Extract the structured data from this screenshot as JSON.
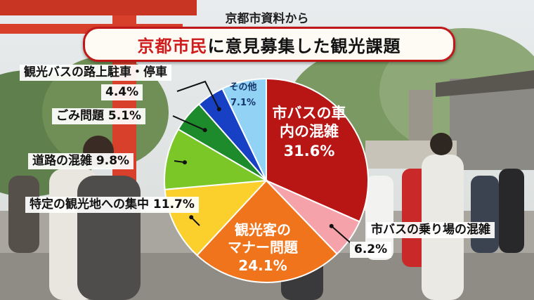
{
  "source": "京都市資料から",
  "title_accent": "京都市民",
  "title_rest": "に意見募集した観光課題",
  "chart_data": {
    "type": "pie",
    "title": "京都市民に意見募集した観光課題",
    "start_angle_deg": 0,
    "direction": "clockwise",
    "slices": [
      {
        "label": "市バスの車内の混雑",
        "value": 31.6,
        "value_text": "31.6%",
        "color": "#b81515"
      },
      {
        "label": "市バスの乗り場の混雑",
        "value": 6.2,
        "value_text": "6.2%",
        "color": "#f5a2aa"
      },
      {
        "label": "観光客のマナー問題",
        "value": 24.1,
        "value_text": "24.1%",
        "color": "#f0741c"
      },
      {
        "label": "特定の観光地への集中",
        "value": 11.7,
        "value_text": "11.7%",
        "color": "#fcd02c"
      },
      {
        "label": "道路の混雑",
        "value": 9.8,
        "value_text": "9.8%",
        "color": "#7cc728"
      },
      {
        "label": "ごみ問題",
        "value": 5.1,
        "value_text": "5.1%",
        "color": "#1d8a2c"
      },
      {
        "label": "観光バスの路上駐車・停車",
        "value": 4.4,
        "value_text": "4.4%",
        "color": "#1740c4"
      },
      {
        "label": "その他",
        "value": 7.1,
        "value_text": "7.1%",
        "color": "#92d2f4"
      }
    ]
  }
}
